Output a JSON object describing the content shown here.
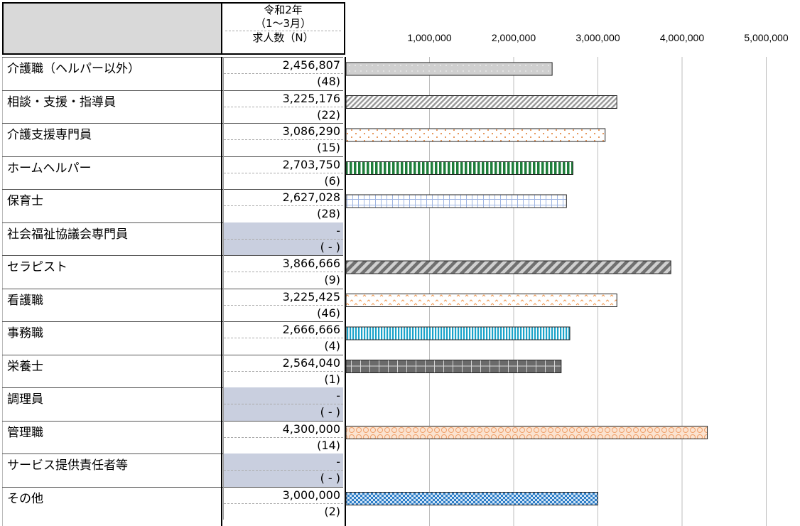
{
  "header": {
    "line1": "令和2年",
    "line2": "（1～3月）",
    "line3": "求人数（N）"
  },
  "chart_data": {
    "type": "bar",
    "orientation": "horizontal",
    "title": "",
    "xlim": [
      0,
      5000000
    ],
    "xticks": [
      1000000,
      2000000,
      3000000,
      4000000,
      5000000
    ],
    "xtick_labels": [
      "1,000,000",
      "2,000,000",
      "3,000,000",
      "4,000,000",
      "5,000,000"
    ],
    "grid": "vertical",
    "categories": [
      "介護職（ヘルパー以外）",
      "相談・支援・指導員",
      "介護支援専門員",
      "ホームヘルパー",
      "保育士",
      "社会福祉協議会専門員",
      "セラピスト",
      "看護職",
      "事務職",
      "栄養士",
      "調理員",
      "管理職",
      "サービス提供責任者等",
      "その他"
    ],
    "values": [
      2456807,
      3225176,
      3086290,
      2703750,
      2627028,
      null,
      3866666,
      3225425,
      2666666,
      2564040,
      null,
      4300000,
      null,
      3000000
    ],
    "value_labels": [
      "2,456,807",
      "3,225,176",
      "3,086,290",
      "2,703,750",
      "2,627,028",
      "-",
      "3,866,666",
      "3,225,425",
      "2,666,666",
      "2,564,040",
      "-",
      "4,300,000",
      "-",
      "3,000,000"
    ],
    "count_labels": [
      "(48)",
      "(22)",
      "(15)",
      "(6)",
      "(28)",
      "( - )",
      "(9)",
      "(46)",
      "(4)",
      "(1)",
      "( - )",
      "(14)",
      "( - )",
      "(2)"
    ],
    "patterns": [
      "dots-grey",
      "diagonal-grey",
      "dots-orange",
      "vstripes-green",
      "grid-blue",
      "none",
      "diagonal-dark",
      "zigzag-orange",
      "vstripes-cyan",
      "grid-dark",
      "none",
      "circles-orange",
      "none",
      "checks-blue"
    ],
    "na_fill_color": "#c9cfdf"
  }
}
